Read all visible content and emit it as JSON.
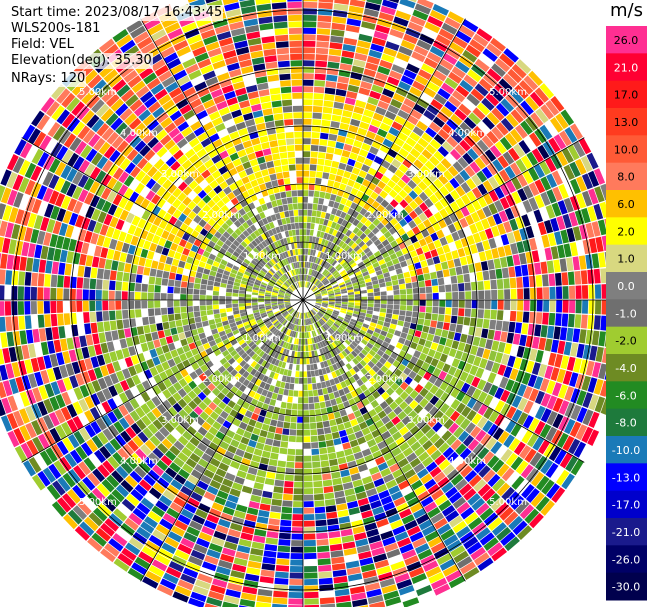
{
  "header": {
    "start_time": "Start time: 2023/08/17 16:43:45",
    "instrument": "WLS200s-181",
    "field": "Field: VEL",
    "elevation": "Elevation(deg): 35.30",
    "nrays": "NRays: 120"
  },
  "colorbar": {
    "unit": "m/s",
    "ticks": [
      "26.0",
      "21.0",
      "17.0",
      "13.0",
      "10.0",
      "8.0",
      "6.0",
      "2.0",
      "1.0",
      "0.0",
      "-1.0",
      "-2.0",
      "-4.0",
      "-6.0",
      "-8.0",
      "-10.0",
      "-13.0",
      "-17.0",
      "-21.0",
      "-26.0",
      "-30.0"
    ],
    "colors": [
      "#ff2f92",
      "#ff0033",
      "#ff1a1a",
      "#ff3b1f",
      "#ff5a36",
      "#ff7a5c",
      "#ffc000",
      "#ffff00",
      "#d8d880",
      "#7f7f7f",
      "#6f6f6f",
      "#a0cc30",
      "#6e8b23",
      "#228b22",
      "#1e7a3c",
      "#1a7ab8",
      "#0000ff",
      "#0000cc",
      "#1a1a8c",
      "#000066",
      "#00004d"
    ]
  },
  "chart_data": {
    "type": "heatmap",
    "projection": "polar-ppi",
    "field": "VEL",
    "units": "m/s",
    "nrays": 120,
    "elevation_deg": 35.3,
    "range_rings_km": [
      1.0,
      2.0,
      3.0,
      4.0,
      5.0
    ],
    "ring_labels": [
      "1.00km",
      "2.00km",
      "3.00km",
      "4.00km",
      "5.00km"
    ],
    "color_scale_range": [
      -30,
      26
    ],
    "pattern": {
      "inner_zone_km": [
        0,
        2.0
      ],
      "inner_zone_values": "mostly 0 to -2 m/s (gray and light green), with patches of 2 m/s (yellow)",
      "mid_zone_km": [
        2.0,
        3.5
      ],
      "mid_zone_values": "yellow 2 m/s band in the north, light green -2 m/s in the south",
      "outer_zone_km": [
        3.5,
        5.6
      ],
      "outer_zone_values": "noisy mix across the full scale"
    }
  }
}
